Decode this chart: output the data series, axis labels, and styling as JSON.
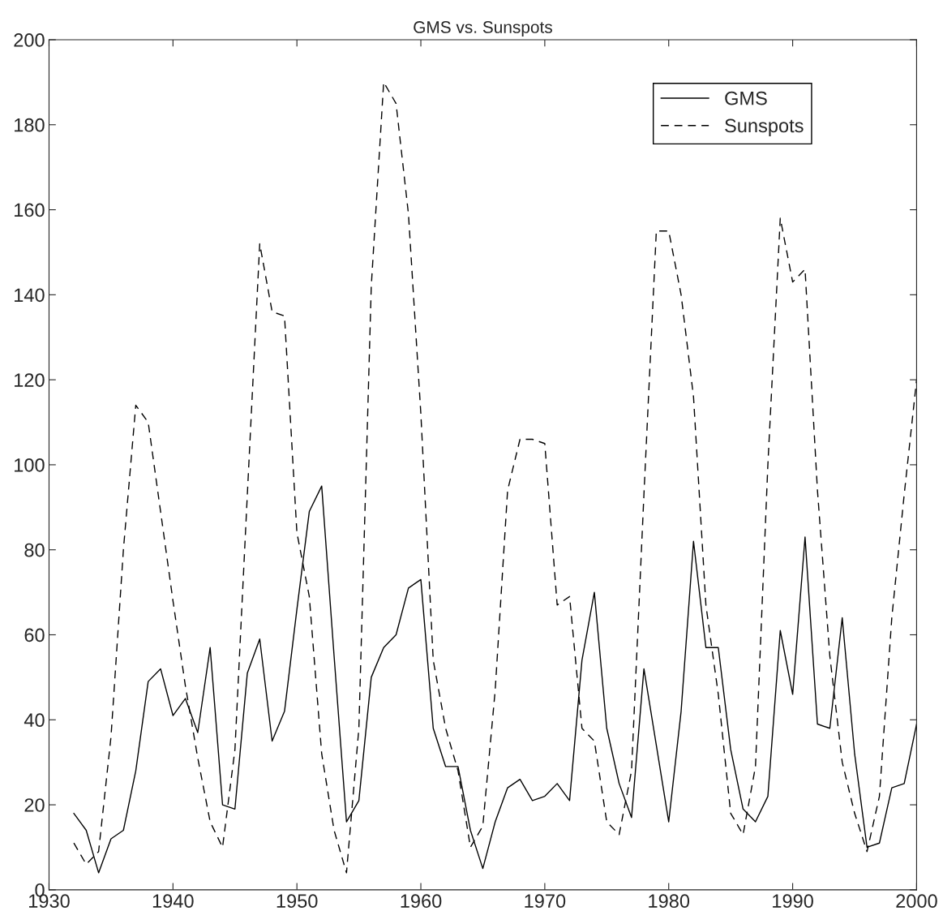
{
  "chart_data": {
    "type": "line",
    "title": "GMS vs. Sunspots",
    "x": [
      1932,
      1933,
      1934,
      1935,
      1936,
      1937,
      1938,
      1939,
      1940,
      1941,
      1942,
      1943,
      1944,
      1945,
      1946,
      1947,
      1948,
      1949,
      1950,
      1951,
      1952,
      1953,
      1954,
      1955,
      1956,
      1957,
      1958,
      1959,
      1960,
      1961,
      1962,
      1963,
      1964,
      1965,
      1966,
      1967,
      1968,
      1969,
      1970,
      1971,
      1972,
      1973,
      1974,
      1975,
      1976,
      1977,
      1978,
      1979,
      1980,
      1981,
      1982,
      1983,
      1984,
      1985,
      1986,
      1987,
      1988,
      1989,
      1990,
      1991,
      1992,
      1993,
      1994,
      1995,
      1996,
      1997,
      1998,
      1999,
      2000
    ],
    "series": [
      {
        "name": "GMS",
        "color": "#000000",
        "line_style": "solid",
        "values": [
          18,
          14,
          4,
          12,
          14,
          28,
          49,
          52,
          41,
          45,
          37,
          57,
          20,
          19,
          51,
          59,
          35,
          42,
          66,
          89,
          95,
          55,
          16,
          21,
          50,
          57,
          60,
          71,
          73,
          38,
          29,
          29,
          14,
          5,
          16,
          24,
          26,
          21,
          22,
          25,
          21,
          54,
          70,
          38,
          25,
          17,
          52,
          34,
          16,
          42,
          82,
          57,
          57,
          33,
          19,
          16,
          22,
          61,
          46,
          83,
          39,
          38,
          64,
          32,
          10,
          11,
          24,
          25,
          39
        ]
      },
      {
        "name": "Sunspots",
        "color": "#000000",
        "line_style": "dashed",
        "values": [
          11,
          6,
          9,
          36,
          80,
          114,
          110,
          89,
          68,
          48,
          31,
          16,
          10,
          33,
          93,
          152,
          136,
          135,
          84,
          69,
          32,
          14,
          4,
          38,
          142,
          190,
          185,
          159,
          112,
          54,
          38,
          28,
          10,
          15,
          47,
          94,
          106,
          106,
          105,
          67,
          69,
          38,
          35,
          16,
          13,
          28,
          93,
          155,
          155,
          140,
          116,
          67,
          46,
          18,
          13,
          29,
          100,
          158,
          143,
          146,
          94,
          55,
          30,
          18,
          9,
          22,
          64,
          93,
          120
        ]
      }
    ],
    "xlim": [
      1930,
      2000
    ],
    "xticks": [
      1930,
      1940,
      1950,
      1960,
      1970,
      1980,
      1990,
      2000
    ],
    "ylim": [
      0,
      200
    ],
    "yticks": [
      0,
      20,
      40,
      60,
      80,
      100,
      120,
      140,
      160,
      180,
      200
    ],
    "grid": false,
    "legend": "top right",
    "marker": "none"
  }
}
